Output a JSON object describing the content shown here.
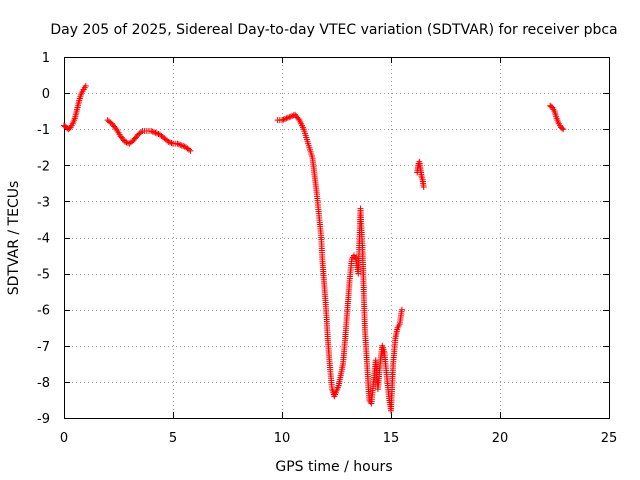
{
  "chart_data": {
    "type": "scatter",
    "title": "Day 205 of 2025, Sidereal Day-to-day VTEC variation (SDTVAR) for receiver pbca",
    "xlabel": "GPS time / hours",
    "ylabel": "SDTVAR / TECUs",
    "xlim": [
      0,
      25
    ],
    "ylim": [
      -9,
      1
    ],
    "xticks": [
      0,
      5,
      10,
      15,
      20,
      25
    ],
    "yticks": [
      1,
      0,
      -1,
      -2,
      -3,
      -4,
      -5,
      -6,
      -7,
      -8,
      -9
    ],
    "grid": true,
    "marker": "+",
    "series_color": "#ff0000",
    "segments": [
      {
        "name": "segment-1",
        "x": [
          0.0,
          0.1,
          0.2,
          0.3,
          0.4,
          0.5,
          0.6,
          0.7,
          0.8,
          0.9,
          1.0
        ],
        "y": [
          -0.9,
          -0.95,
          -1.0,
          -0.95,
          -0.85,
          -0.7,
          -0.45,
          -0.2,
          0.0,
          0.1,
          0.2
        ]
      },
      {
        "name": "segment-2",
        "x": [
          2.0,
          2.2,
          2.4,
          2.6,
          2.8,
          3.0,
          3.2,
          3.4,
          3.6,
          3.8,
          4.0,
          4.2,
          4.4,
          4.6,
          4.8,
          5.0,
          5.2,
          5.4,
          5.6,
          5.8
        ],
        "y": [
          -0.75,
          -0.85,
          -1.0,
          -1.2,
          -1.35,
          -1.4,
          -1.3,
          -1.15,
          -1.05,
          -1.05,
          -1.05,
          -1.1,
          -1.15,
          -1.25,
          -1.35,
          -1.4,
          -1.4,
          -1.45,
          -1.5,
          -1.6
        ]
      },
      {
        "name": "segment-3",
        "x": [
          9.8,
          10.0,
          10.2,
          10.4,
          10.6,
          10.8,
          11.0,
          11.2,
          11.4,
          11.5,
          11.6,
          11.7,
          11.8,
          11.85,
          11.9,
          12.0,
          12.1,
          12.2,
          12.3,
          12.4,
          12.6,
          12.8,
          12.9,
          13.0,
          13.1,
          13.2,
          13.3,
          13.4,
          13.5,
          13.6,
          13.7,
          13.75,
          13.8,
          13.9,
          14.0,
          14.1,
          14.2,
          14.3,
          14.4,
          14.5,
          14.6,
          14.7,
          14.8,
          14.9,
          15.0,
          15.1,
          15.2,
          15.3,
          15.4,
          15.5
        ],
        "y": [
          -0.75,
          -0.75,
          -0.7,
          -0.65,
          -0.6,
          -0.75,
          -1.0,
          -1.4,
          -1.8,
          -2.3,
          -2.8,
          -3.4,
          -4.0,
          -4.6,
          -5.0,
          -5.8,
          -6.8,
          -7.6,
          -8.2,
          -8.4,
          -8.1,
          -7.5,
          -6.8,
          -6.0,
          -5.2,
          -4.6,
          -4.5,
          -4.6,
          -5.0,
          -3.2,
          -4.4,
          -5.5,
          -6.5,
          -7.5,
          -8.5,
          -8.6,
          -8.0,
          -7.4,
          -8.2,
          -7.5,
          -7.0,
          -7.2,
          -7.8,
          -8.4,
          -8.8,
          -7.5,
          -6.8,
          -6.5,
          -6.4,
          -6.0
        ]
      },
      {
        "name": "segment-4",
        "x": [
          16.2,
          16.25,
          16.3,
          16.35,
          16.4,
          16.45,
          16.5
        ],
        "y": [
          -2.2,
          -2.0,
          -1.9,
          -2.1,
          -2.3,
          -2.4,
          -2.6
        ]
      },
      {
        "name": "segment-5",
        "x": [
          22.3,
          22.4,
          22.5,
          22.6,
          22.7,
          22.8,
          22.9
        ],
        "y": [
          -0.35,
          -0.4,
          -0.5,
          -0.7,
          -0.85,
          -0.95,
          -1.0
        ]
      }
    ]
  }
}
